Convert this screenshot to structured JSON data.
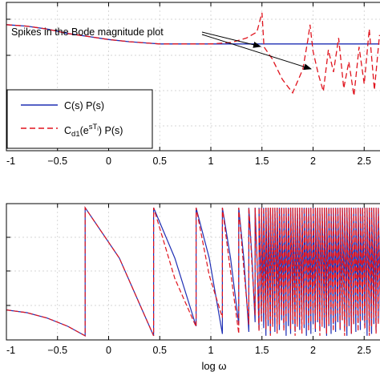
{
  "chart_data": [
    {
      "type": "line",
      "panel": "top",
      "xlabel": "",
      "ylabel": "",
      "xlim": [
        -1,
        2.65
      ],
      "ylim": [
        0,
        1
      ],
      "x_ticks": [
        -1,
        -0.5,
        0,
        0.5,
        1,
        1.5,
        2,
        2.5
      ],
      "x_tick_labels": [
        "-1",
        "−0.5",
        "0",
        "0.5",
        "1",
        "1.5",
        "2",
        "2.5"
      ],
      "grid": true,
      "legend": {
        "placement": "bottom-left",
        "entries": [
          {
            "label": "C(s) P(s)",
            "color": "#1f2fb4",
            "style": "solid"
          },
          {
            "label_main": "C",
            "label_sub": "d1",
            "label_mid": "(e",
            "label_sup": "sT",
            "label_sup_sub": "i",
            "label_end": ") P(s)",
            "color": "#e0141e",
            "style": "dashed"
          }
        ]
      },
      "annotation": {
        "text": "Spikes in the Bode magnitude plot",
        "targets_x": [
          1.5,
          1.97
        ]
      },
      "series": [
        {
          "color": "#1f2fb4",
          "style": "solid",
          "x": [
            -1,
            -0.8,
            -0.6,
            -0.4,
            -0.2,
            0,
            0.2,
            0.4,
            0.5,
            0.7,
            1,
            1.5,
            2,
            2.65
          ],
          "y": [
            0.85,
            0.84,
            0.82,
            0.79,
            0.77,
            0.75,
            0.735,
            0.725,
            0.72,
            0.72,
            0.72,
            0.72,
            0.72,
            0.72
          ]
        },
        {
          "color": "#e0141e",
          "style": "dashed",
          "x": [
            -1,
            -0.8,
            -0.6,
            -0.4,
            -0.2,
            0,
            0.2,
            0.4,
            0.5,
            0.7,
            1,
            1.2,
            1.35,
            1.45,
            1.5,
            1.52,
            1.6,
            1.7,
            1.8,
            1.9,
            1.95,
            1.97,
            2.0,
            2.05,
            2.1,
            2.15,
            2.2,
            2.25,
            2.3,
            2.35,
            2.4,
            2.45,
            2.5,
            2.55,
            2.6,
            2.65
          ],
          "y": [
            0.85,
            0.84,
            0.82,
            0.79,
            0.77,
            0.75,
            0.735,
            0.725,
            0.72,
            0.72,
            0.72,
            0.73,
            0.76,
            0.8,
            0.93,
            0.7,
            0.62,
            0.48,
            0.39,
            0.55,
            0.75,
            0.85,
            0.67,
            0.52,
            0.4,
            0.68,
            0.53,
            0.76,
            0.42,
            0.6,
            0.37,
            0.7,
            0.45,
            0.82,
            0.41,
            0.78
          ]
        }
      ]
    },
    {
      "type": "line",
      "panel": "bottom",
      "xlabel": "log ω",
      "ylabel": "",
      "xlim": [
        -1,
        2.65
      ],
      "ylim": [
        0,
        1
      ],
      "x_ticks": [
        -1,
        -0.5,
        0,
        0.5,
        1,
        1.5,
        2,
        2.5
      ],
      "x_tick_labels": [
        "-1",
        "−0.5",
        "0",
        "0.5",
        "1",
        "1.5",
        "2",
        "2.5"
      ],
      "grid": true,
      "note": "phase plot with sawtooth wrapping; oscillation frequency increasing with log ω",
      "series": [
        {
          "color": "#1f2fb4",
          "style": "solid",
          "x": [
            -1,
            -0.8,
            -0.6,
            -0.4,
            -0.23
          ],
          "y": [
            0.22,
            0.2,
            0.16,
            0.1,
            0.03
          ]
        },
        {
          "color": "#e0141e",
          "style": "dashed",
          "x": [
            -1,
            -0.8,
            -0.6,
            -0.4,
            -0.23
          ],
          "y": [
            0.22,
            0.2,
            0.16,
            0.1,
            0.03
          ]
        }
      ]
    }
  ]
}
